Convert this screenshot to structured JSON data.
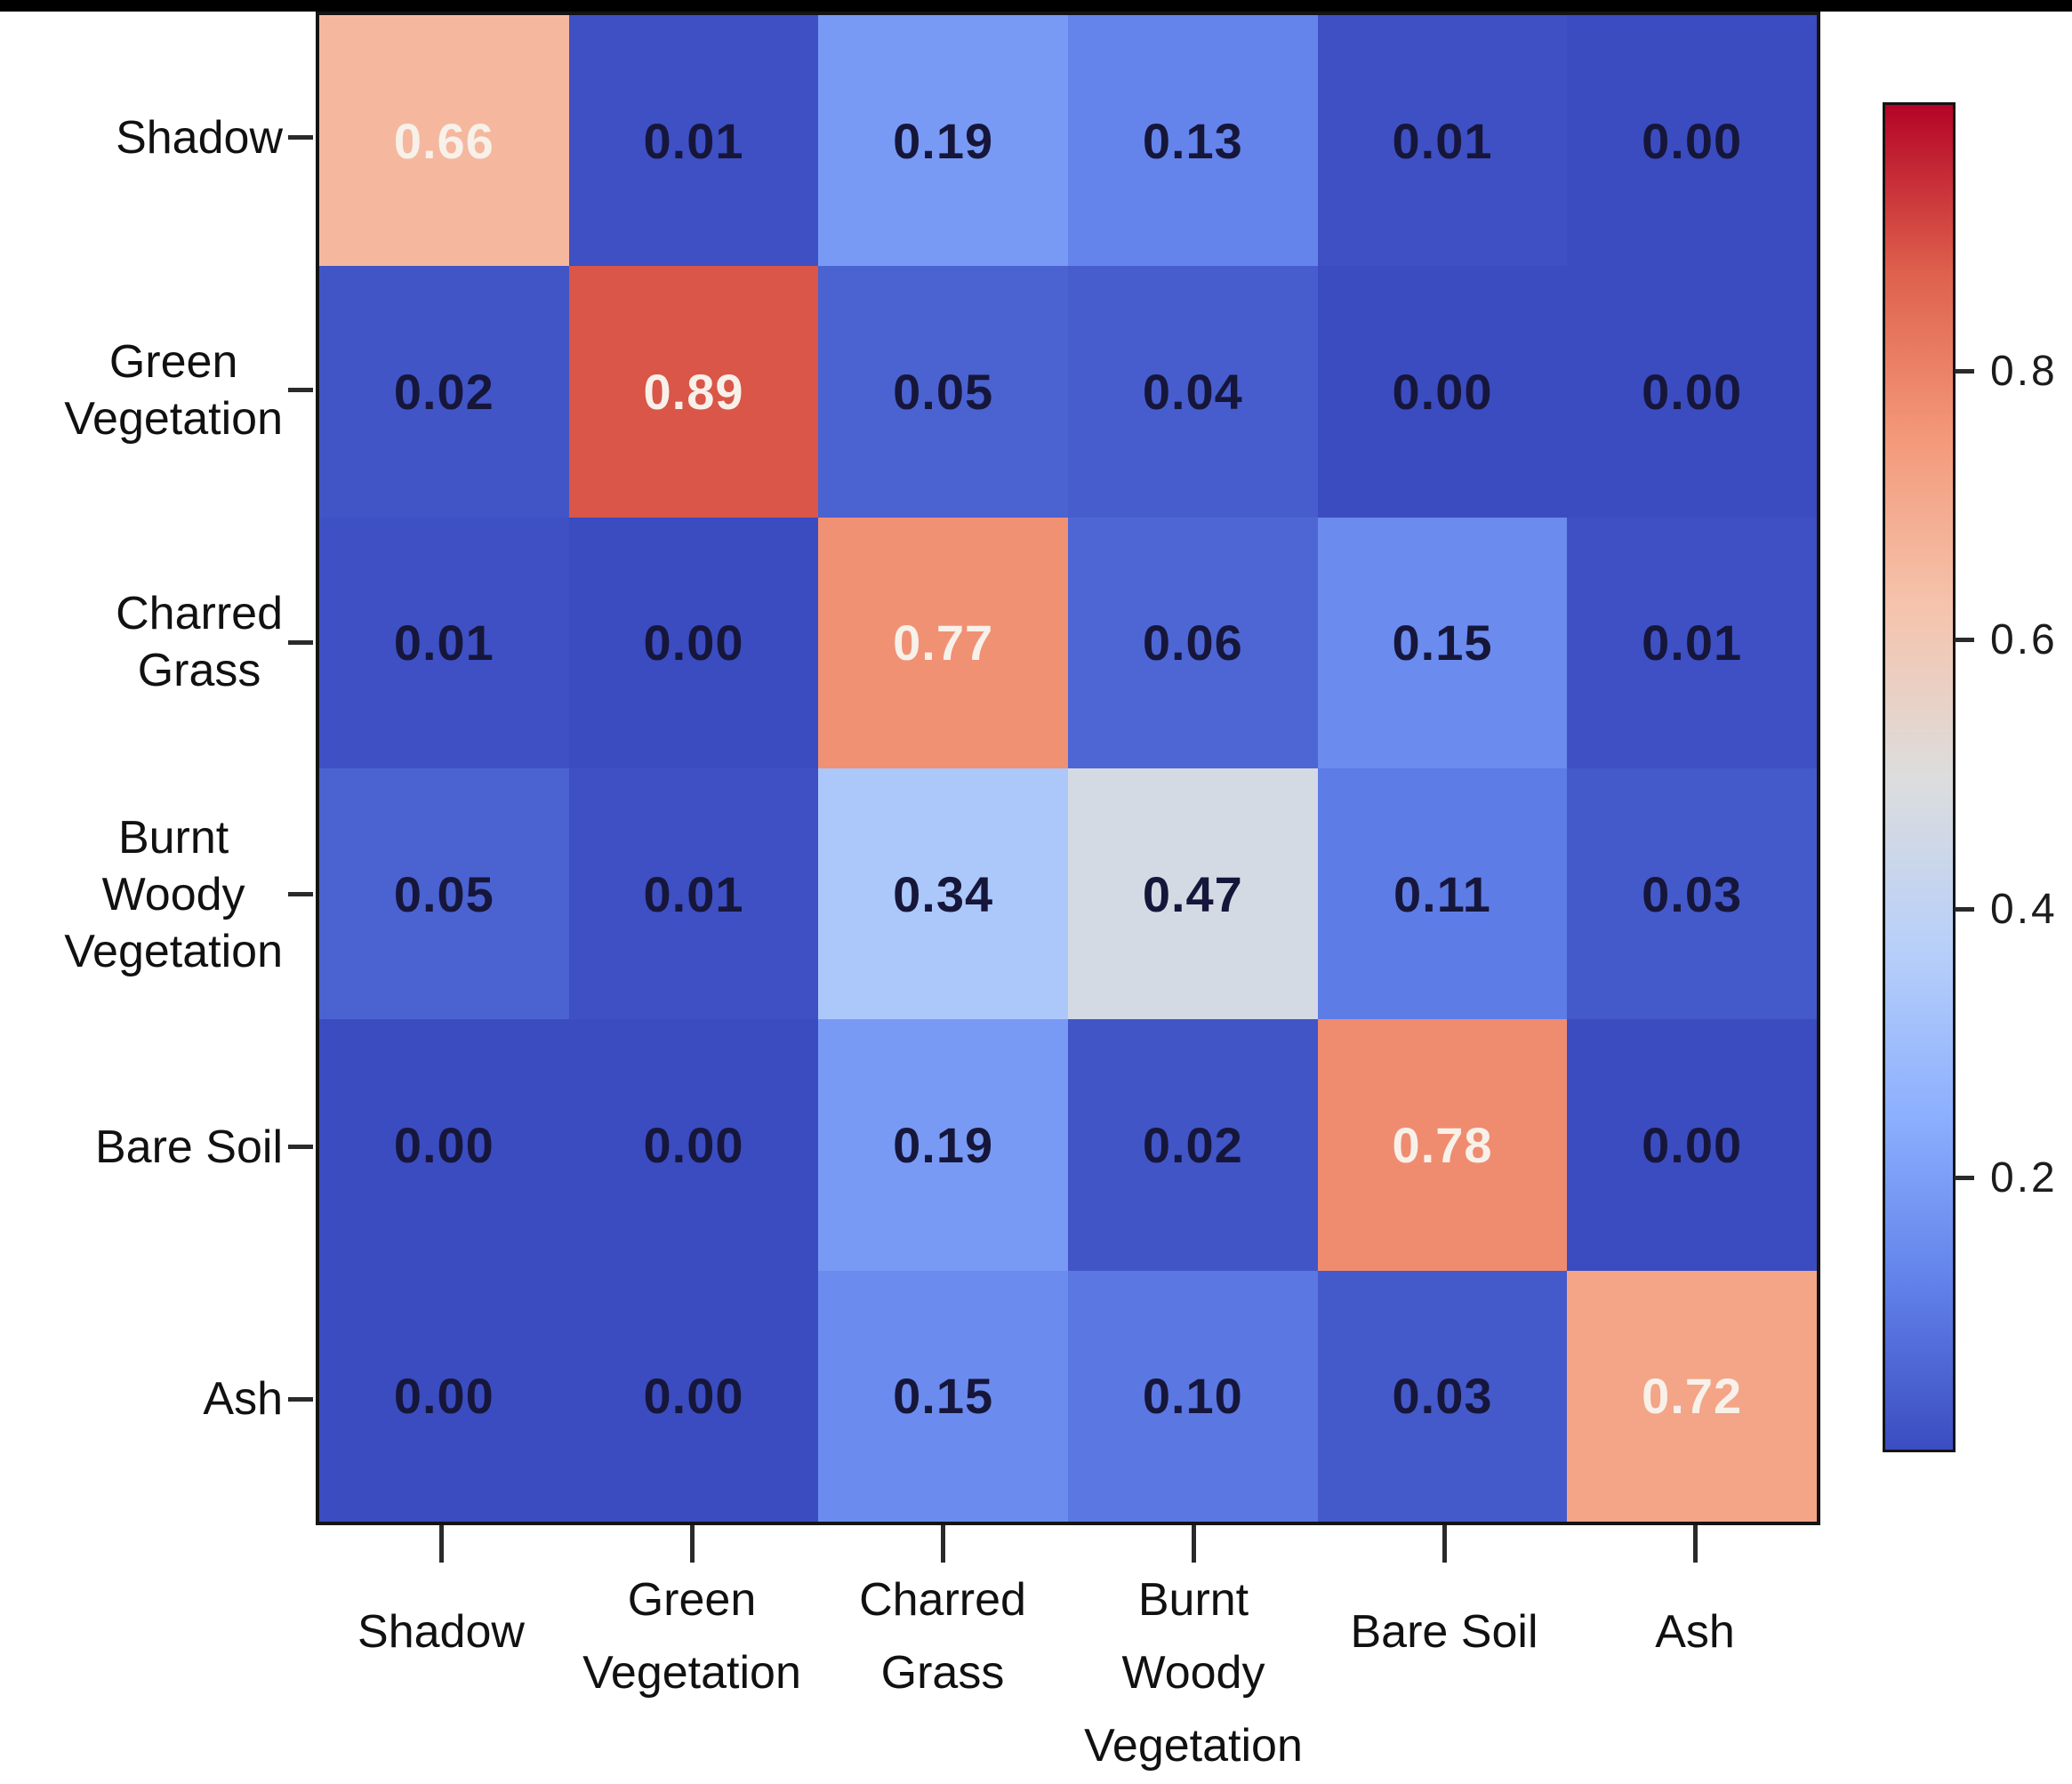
{
  "chart_data": {
    "type": "heatmap",
    "title": "",
    "description": "Confusion matrix of land-cover classes, colored with a blue-to-red (coolwarm) colormap",
    "row_labels": [
      [
        "Shadow"
      ],
      [
        "Green",
        "Vegetation"
      ],
      [
        "Charred",
        "Grass"
      ],
      [
        "Burnt",
        "Woody",
        "Vegetation"
      ],
      [
        "Bare Soil"
      ],
      [
        "Ash"
      ]
    ],
    "col_labels": [
      [
        "Shadow"
      ],
      [
        "Green",
        "Vegetation"
      ],
      [
        "Charred",
        "Grass"
      ],
      [
        "Burnt",
        "Woody",
        "Vegetation"
      ],
      [
        "Bare Soil"
      ],
      [
        "Ash"
      ]
    ],
    "values": [
      [
        0.66,
        0.01,
        0.19,
        0.13,
        0.01,
        0.0
      ],
      [
        0.02,
        0.89,
        0.05,
        0.04,
        0.0,
        0.0
      ],
      [
        0.01,
        0.0,
        0.77,
        0.06,
        0.15,
        0.01
      ],
      [
        0.05,
        0.01,
        0.34,
        0.47,
        0.11,
        0.03
      ],
      [
        0.0,
        0.0,
        0.19,
        0.02,
        0.78,
        0.0
      ],
      [
        0.0,
        0.0,
        0.15,
        0.1,
        0.03,
        0.72
      ]
    ],
    "value_decimals": 2,
    "vmin": 0.0,
    "vmax": 1.0,
    "colormap_name": "coolwarm",
    "colormap_stops": [
      {
        "t": 0.0,
        "color": "#3B4CC0"
      },
      {
        "t": 0.125,
        "color": "#6282EA"
      },
      {
        "t": 0.25,
        "color": "#8DB0FE"
      },
      {
        "t": 0.375,
        "color": "#B8D0F9"
      },
      {
        "t": 0.5,
        "color": "#DDDDDD"
      },
      {
        "t": 0.625,
        "color": "#F5C4AD"
      },
      {
        "t": 0.75,
        "color": "#F49A7B"
      },
      {
        "t": 0.875,
        "color": "#DE614D"
      },
      {
        "t": 1.0,
        "color": "#B40426"
      }
    ],
    "colorbar_ticks": [
      0.2,
      0.4,
      0.6,
      0.8
    ],
    "colorbar_tick_labels": [
      "0.2",
      "0.4",
      "0.6",
      "0.8"
    ],
    "legend_position": "right",
    "grid": false,
    "text_color_dark": "#16163a",
    "text_color_light": "#f7f1ea",
    "light_text_threshold": 0.6
  }
}
